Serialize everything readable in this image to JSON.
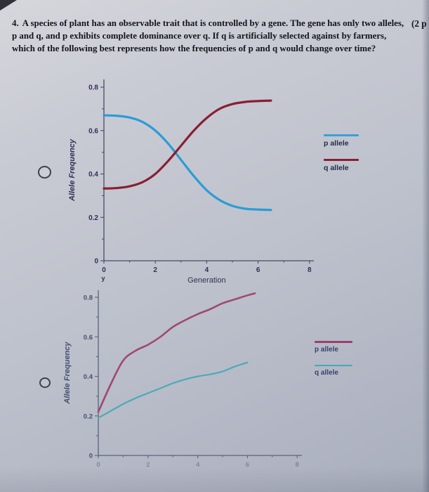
{
  "question": {
    "number": "4.",
    "text": "A species of plant has an observable trait that is controlled by a gene. The gene has only two alleles, p and q, and p exhibits complete dominance over q. If q is artificially selected against by farmers, which of the following best represents how the frequencies of p and q would change over time?",
    "points_fragment": "(2 p"
  },
  "options": [
    {
      "id": "option-a",
      "selected": false
    },
    {
      "id": "option-b",
      "selected": false
    }
  ],
  "chart_data": [
    {
      "type": "line",
      "title": "",
      "xlabel": "Generation",
      "ylabel": "Allele Frequency",
      "xlim": [
        0,
        8
      ],
      "ylim": [
        0,
        0.8
      ],
      "xticks": [
        0,
        2,
        4,
        6,
        8
      ],
      "yticks": [
        0.8,
        0.6,
        0.4,
        0.2,
        0
      ],
      "grid": false,
      "legend_position": "right",
      "axis_color": "#474c66",
      "text_color": "#2c3254",
      "stray_label": "y",
      "legend": [
        {
          "label": "p allele",
          "color": "#3d9fd8"
        },
        {
          "label": "q allele",
          "color": "#8a1f33"
        }
      ],
      "series": [
        {
          "name": "p allele",
          "color": "#2b9cd6",
          "points": [
            [
              0,
              0.67
            ],
            [
              0.5,
              0.668
            ],
            [
              1,
              0.66
            ],
            [
              1.5,
              0.64
            ],
            [
              2,
              0.6
            ],
            [
              2.5,
              0.54
            ],
            [
              3,
              0.465
            ],
            [
              3.5,
              0.39
            ],
            [
              4,
              0.325
            ],
            [
              4.5,
              0.28
            ],
            [
              5,
              0.253
            ],
            [
              5.5,
              0.24
            ],
            [
              6,
              0.236
            ],
            [
              6.5,
              0.234
            ]
          ]
        },
        {
          "name": "q allele",
          "color": "#8a1f33",
          "points": [
            [
              0,
              0.333
            ],
            [
              0.5,
              0.335
            ],
            [
              1,
              0.343
            ],
            [
              1.5,
              0.362
            ],
            [
              2,
              0.4
            ],
            [
              2.5,
              0.46
            ],
            [
              3,
              0.53
            ],
            [
              3.5,
              0.6
            ],
            [
              4,
              0.658
            ],
            [
              4.5,
              0.7
            ],
            [
              5,
              0.722
            ],
            [
              5.5,
              0.732
            ],
            [
              6,
              0.736
            ],
            [
              6.5,
              0.738
            ]
          ]
        }
      ]
    },
    {
      "type": "line",
      "title": "",
      "xlabel": "",
      "ylabel": "Allele Frequency",
      "xlim": [
        0,
        8
      ],
      "ylim": [
        0,
        0.8
      ],
      "xticks": [
        0,
        2,
        4,
        6,
        8
      ],
      "yticks": [
        0.8,
        0.6,
        0.4,
        0.2,
        0
      ],
      "grid": false,
      "legend_position": "right",
      "axis_color": "#565d76",
      "text_color": "#3d4668",
      "legend": [
        {
          "label": "p allele",
          "color": "#9e3f6d"
        },
        {
          "label": "q allele",
          "color": "#46a9b4"
        }
      ],
      "series": [
        {
          "name": "p allele",
          "color": "#9e3f6d",
          "points": [
            [
              0,
              0.22
            ],
            [
              0.5,
              0.36
            ],
            [
              1,
              0.48
            ],
            [
              1.5,
              0.53
            ],
            [
              2,
              0.56
            ],
            [
              2.5,
              0.6
            ],
            [
              3,
              0.65
            ],
            [
              3.5,
              0.685
            ],
            [
              4,
              0.715
            ],
            [
              4.5,
              0.74
            ],
            [
              5,
              0.77
            ],
            [
              5.5,
              0.79
            ],
            [
              6,
              0.81
            ],
            [
              6.3,
              0.82
            ]
          ]
        },
        {
          "name": "q allele",
          "color": "#46a9b4",
          "points": [
            [
              0,
              0.19
            ],
            [
              0.5,
              0.225
            ],
            [
              1,
              0.26
            ],
            [
              1.5,
              0.29
            ],
            [
              2,
              0.315
            ],
            [
              2.5,
              0.34
            ],
            [
              3,
              0.365
            ],
            [
              3.5,
              0.385
            ],
            [
              4,
              0.4
            ],
            [
              4.5,
              0.41
            ],
            [
              5,
              0.425
            ],
            [
              5.5,
              0.45
            ],
            [
              6,
              0.47
            ]
          ]
        }
      ]
    }
  ]
}
